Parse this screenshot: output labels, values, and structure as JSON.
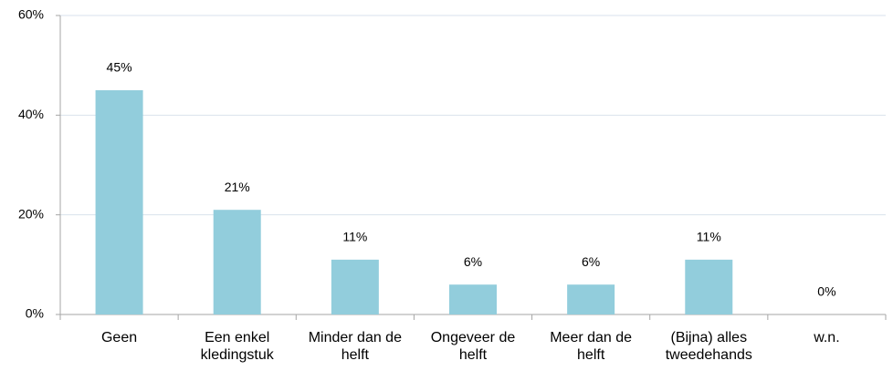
{
  "chart_data": {
    "type": "bar",
    "categories": [
      "Geen",
      "Een enkel kledingstuk",
      "Minder dan de helft",
      "Ongeveer de helft",
      "Meer dan de helft",
      "(Bijna) alles tweedehands",
      "w.n."
    ],
    "values": [
      45,
      21,
      11,
      6,
      6,
      11,
      0
    ],
    "value_labels": [
      "45%",
      "21%",
      "11%",
      "6%",
      "6%",
      "11%",
      "0%"
    ],
    "color": "#92cddc",
    "ylim": [
      0,
      60
    ],
    "yticks": [
      {
        "value": 0,
        "label": "0%"
      },
      {
        "value": 20,
        "label": "20%"
      },
      {
        "value": 40,
        "label": "40%"
      },
      {
        "value": 60,
        "label": "60%"
      }
    ],
    "grid": true
  }
}
